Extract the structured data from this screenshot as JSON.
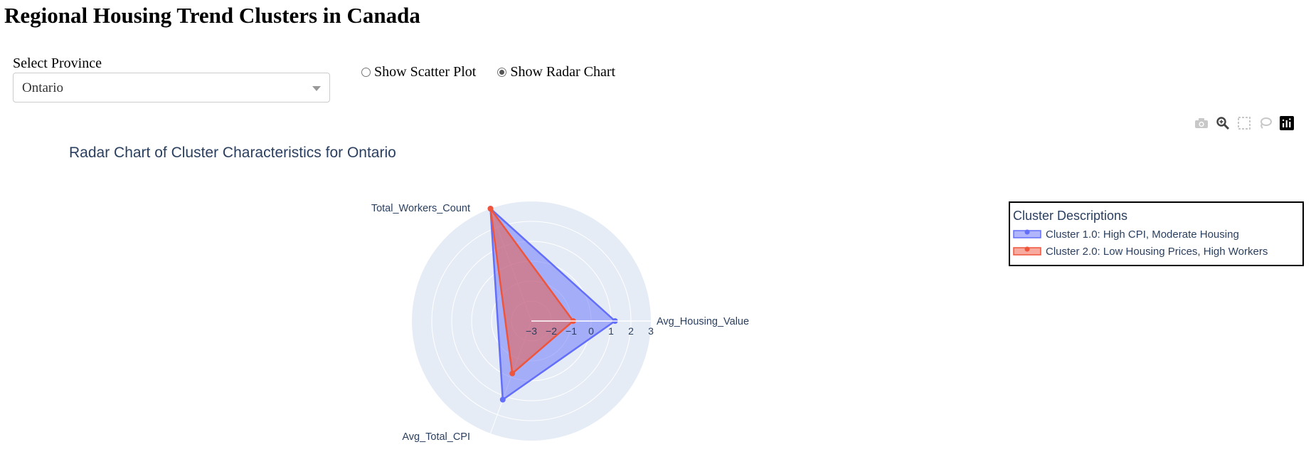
{
  "page": {
    "title": "Regional Housing Trend Clusters in Canada"
  },
  "controls": {
    "province_label": "Select Province",
    "province_selected": "Ontario",
    "radio_options": [
      {
        "label": "Show Scatter Plot",
        "checked": false
      },
      {
        "label": "Show Radar Chart",
        "checked": true
      }
    ]
  },
  "modebar": {
    "icons": [
      "camera-icon",
      "zoom-icon",
      "box-select-icon",
      "lasso-icon",
      "plotly-logo-icon"
    ]
  },
  "chart_data": {
    "type": "radar",
    "title": "Radar Chart of Cluster Characteristics for Ontario",
    "axes": [
      "Avg_Housing_Value",
      "Total_Workers_Count",
      "Avg_Total_CPI"
    ],
    "radial_range": [
      -3,
      3
    ],
    "radial_ticks": [
      "−3",
      "−2",
      "−1",
      "0",
      "1",
      "2",
      "3"
    ],
    "grid": true,
    "legend": {
      "title": "Cluster Descriptions",
      "placement": "top-right"
    },
    "series": [
      {
        "name": "Cluster 1.0: High CPI, Moderate Housing",
        "values": [
          1.2,
          3.0,
          1.2
        ],
        "color": "#636efa"
      },
      {
        "name": "Cluster 2.0: Low Housing Prices, High Workers",
        "values": [
          -0.9,
          3.0,
          -0.2
        ],
        "color": "#ef553b"
      }
    ]
  }
}
